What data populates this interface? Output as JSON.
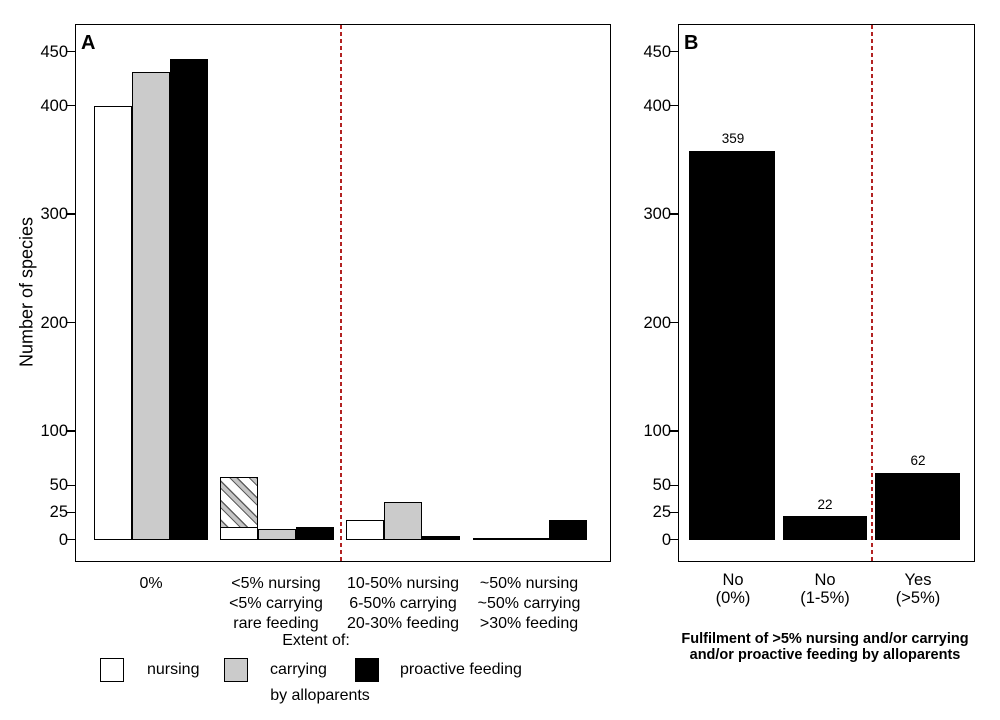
{
  "chart_data": [
    {
      "panel_label": "A",
      "type": "bar",
      "title": "",
      "ylabel": "Number of species",
      "xlabel": "",
      "ylim": [
        0,
        474
      ],
      "yticks": [
        0,
        25,
        50,
        100,
        200,
        300,
        400,
        450
      ],
      "grid": false,
      "category_lines": [
        [
          "0%"
        ],
        [
          "<5% nursing",
          "<5% carrying",
          "rare feeding"
        ],
        [
          "10-50% nursing",
          "6-50% carrying",
          "20-30% feeding"
        ],
        [
          "~50% nursing",
          "~50% carrying",
          ">30% feeding"
        ]
      ],
      "series": [
        {
          "name": "nursing",
          "fill": "#ffffff",
          "values": [
            400,
            58,
            18,
            2
          ]
        },
        {
          "name": "carrying",
          "fill": "#cbcbcb",
          "values": [
            432,
            10,
            35,
            1
          ]
        },
        {
          "name": "proactive feeding",
          "fill": "#000000",
          "values": [
            444,
            12,
            4,
            18
          ]
        }
      ],
      "hatched_segment": {
        "category_index": 1,
        "series": "nursing",
        "bar_total": 58,
        "white_base_value": 11,
        "pattern": "diagonal-stripes"
      },
      "divider_color": "#b22222",
      "divider_between_categories": [
        1,
        2
      ],
      "legend_position": "bottom"
    },
    {
      "panel_label": "B",
      "type": "bar",
      "title": "",
      "ylabel": "",
      "ylim": [
        0,
        474
      ],
      "yticks": [
        0,
        25,
        50,
        100,
        200,
        300,
        400,
        450
      ],
      "grid": false,
      "category_lines": [
        [
          "No",
          "(0%)"
        ],
        [
          "No",
          "(1-5%)"
        ],
        [
          "Yes",
          "(>5%)"
        ]
      ],
      "values": [
        359,
        22,
        62
      ],
      "bar_value_labels": [
        "359",
        "22",
        "62"
      ],
      "bar_color": "#000000",
      "xlabel_lines": [
        "Fulfilment of >5% nursing and/or carrying",
        "and/or proactive feeding by alloparents"
      ],
      "divider_color": "#b22222",
      "divider_between_categories": [
        1,
        2
      ]
    }
  ],
  "legend": {
    "heading": "Extent of:",
    "items": [
      {
        "label": "nursing",
        "fill": "#ffffff"
      },
      {
        "label": "carrying",
        "fill": "#cbcbcb"
      },
      {
        "label": "proactive feeding",
        "fill": "#000000"
      }
    ],
    "footer": "by alloparents"
  }
}
